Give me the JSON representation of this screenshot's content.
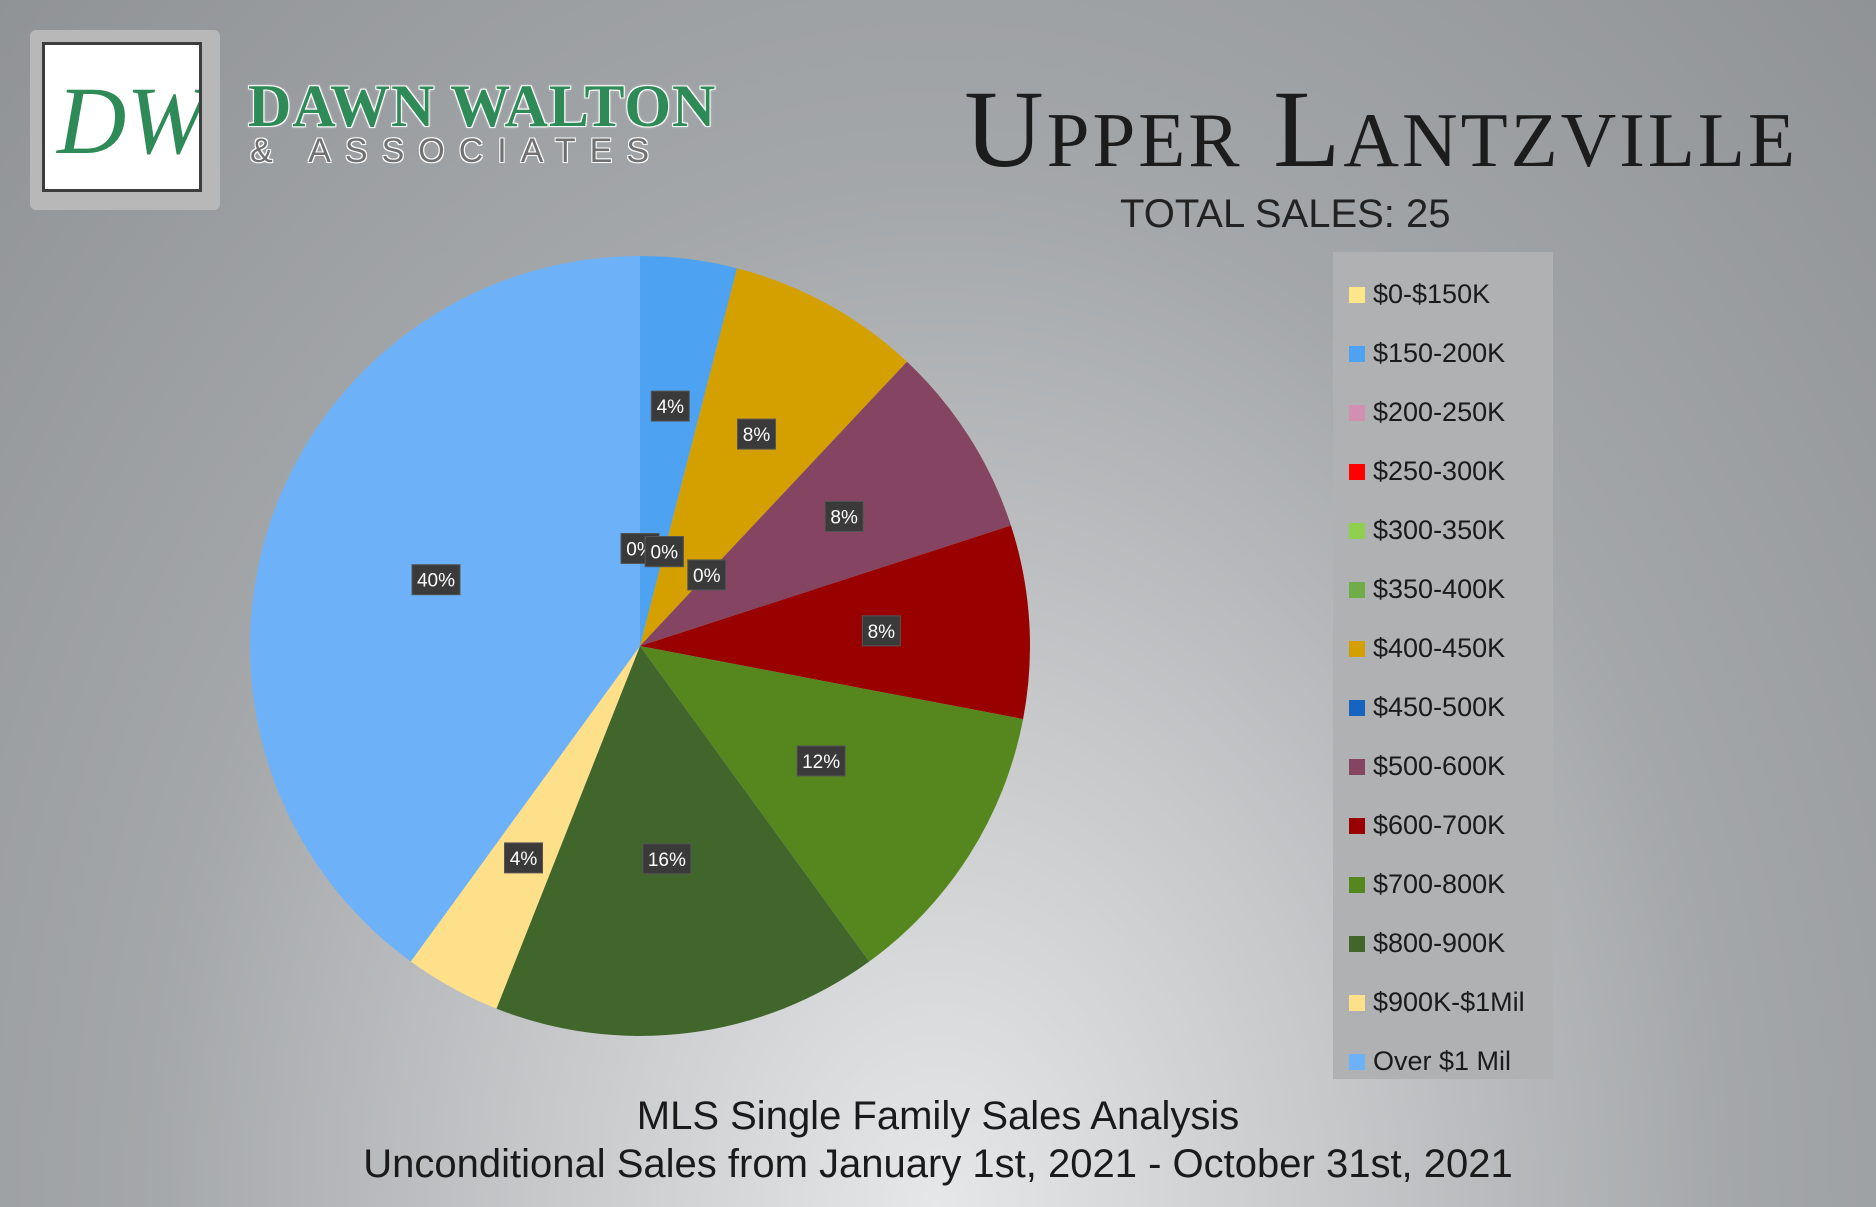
{
  "brand": {
    "logo_letters": "DW",
    "name": "DAWN WALTON",
    "subtitle": "& ASSOCIATES",
    "colors": {
      "green": "#2e8b57",
      "dark": "#3d3d3d"
    }
  },
  "header": {
    "title": "Upper Lantzville",
    "total_sales": "TOTAL SALES: 25"
  },
  "footer": {
    "line1": "MLS Single Family Sales Analysis",
    "line2": "Unconditional Sales from January 1st, 2021 - October 31st, 2021"
  },
  "chart_data": {
    "type": "pie",
    "legend_position": "right",
    "categories": [
      "$0-$150K",
      "$150-200K",
      "$200-250K",
      "$250-300K",
      "$300-350K",
      "$350-400K",
      "$400-450K",
      "$450-500K",
      "$500-600K",
      "$600-700K",
      "$700-800K",
      "$800-900K",
      "$900K-$1Mil",
      "Over $1 Mil"
    ],
    "values": [
      0,
      4,
      0,
      0,
      0,
      0,
      8,
      0,
      8,
      8,
      12,
      16,
      4,
      40
    ],
    "labels": [
      "0%",
      "4%",
      "0%",
      "0%",
      "0%",
      "0%",
      "8%",
      "0%",
      "8%",
      "8%",
      "12%",
      "16%",
      "4%",
      "40%"
    ],
    "colors": [
      "#fde68a",
      "#4da3f2",
      "#d38fb0",
      "#ff0000",
      "#8fd14f",
      "#70ad47",
      "#d4a000",
      "#1565c0",
      "#854462",
      "#990000",
      "#56871f",
      "#41662c",
      "#ffe08a",
      "#6db2f8"
    ],
    "start_angle": 0
  }
}
